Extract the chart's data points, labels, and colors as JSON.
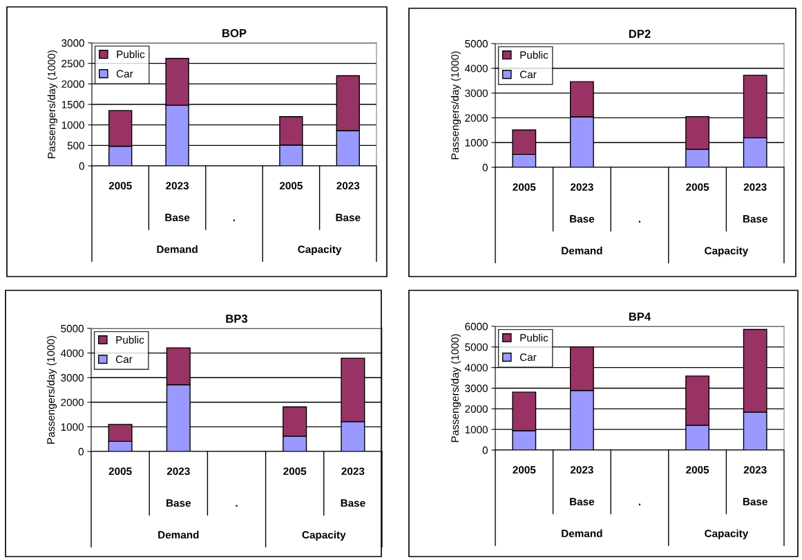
{
  "chart_data": [
    {
      "type": "bar",
      "title": "BOP",
      "ylabel": "Passengers/day (1000)",
      "stacked": true,
      "grid": "y",
      "legend": "top left",
      "categories": [
        "2005",
        "2023",
        null,
        "2005",
        "2023"
      ],
      "annotations": [
        "Base",
        ".",
        "Base",
        "Demand",
        "Capacity"
      ],
      "series": [
        {
          "name": "Car",
          "color": "#9999ff",
          "values": [
            480,
            1480,
            null,
            510,
            860
          ]
        },
        {
          "name": "Public",
          "color": "#993366",
          "values": [
            870,
            1140,
            null,
            690,
            1340
          ]
        }
      ],
      "ylim": [
        0,
        3000
      ],
      "yticks": [
        0,
        500,
        1000,
        1500,
        2000,
        2500,
        3000
      ]
    },
    {
      "type": "bar",
      "title": "DP2",
      "ylabel": "Passengers/day (1000)",
      "stacked": true,
      "grid": "y",
      "legend": "top left",
      "categories": [
        "2005",
        "2023",
        null,
        "2005",
        "2023"
      ],
      "annotations": [
        "Base",
        ".",
        "Base",
        "Demand",
        "Capacity"
      ],
      "series": [
        {
          "name": "Car",
          "color": "#9999ff",
          "values": [
            520,
            2040,
            null,
            730,
            1190
          ]
        },
        {
          "name": "Public",
          "color": "#993366",
          "values": [
            990,
            1420,
            null,
            1320,
            2530
          ]
        }
      ],
      "ylim": [
        0,
        5000
      ],
      "yticks": [
        0,
        1000,
        2000,
        3000,
        4000,
        5000
      ]
    },
    {
      "type": "bar",
      "title": "BP3",
      "ylabel": "Passengers/day (1000)",
      "stacked": true,
      "grid": "y",
      "legend": "top left",
      "categories": [
        "2005",
        "2023",
        null,
        "2005",
        "2023"
      ],
      "annotations": [
        "Base",
        ".",
        "Base",
        "Demand",
        "Capacity"
      ],
      "series": [
        {
          "name": "Car",
          "color": "#9999ff",
          "values": [
            410,
            2710,
            null,
            620,
            1210
          ]
        },
        {
          "name": "Public",
          "color": "#993366",
          "values": [
            690,
            1500,
            null,
            1190,
            2580
          ]
        }
      ],
      "ylim": [
        0,
        5000
      ],
      "yticks": [
        0,
        1000,
        2000,
        3000,
        4000,
        5000
      ]
    },
    {
      "type": "bar",
      "title": "BP4",
      "ylabel": "Passengers/day (1000)",
      "stacked": true,
      "grid": "y",
      "legend": "top left",
      "categories": [
        "2005",
        "2023",
        null,
        "2005",
        "2023"
      ],
      "annotations": [
        "Base",
        ".",
        "Base",
        "Demand",
        "Capacity"
      ],
      "series": [
        {
          "name": "Car",
          "color": "#9999ff",
          "values": [
            940,
            2890,
            null,
            1200,
            1840
          ]
        },
        {
          "name": "Public",
          "color": "#993366",
          "values": [
            1870,
            2110,
            null,
            2390,
            4010
          ]
        }
      ],
      "ylim": [
        0,
        6000
      ],
      "yticks": [
        0,
        1000,
        2000,
        3000,
        4000,
        5000,
        6000
      ]
    }
  ]
}
